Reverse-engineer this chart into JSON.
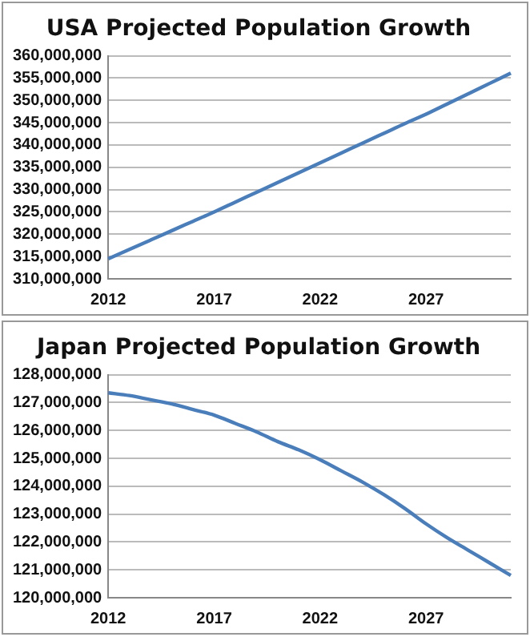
{
  "chart_data": [
    {
      "type": "line",
      "title": "USA Projected Population Growth",
      "categories": [
        "2012",
        null,
        null,
        null,
        null,
        "2017",
        null,
        null,
        null,
        null,
        "2022",
        null,
        null,
        null,
        null,
        "2027",
        null,
        null,
        null,
        null
      ],
      "series": [
        {
          "color": "#4a7ebb",
          "values": [
            314500000,
            316600000,
            318700000,
            320800000,
            322900000,
            325000000,
            327200000,
            329400000,
            331600000,
            333800000,
            336000000,
            338200000,
            340400000,
            342600000,
            344800000,
            346900000,
            349200000,
            351500000,
            353800000,
            356100000
          ]
        }
      ],
      "ylim": [
        310000000,
        360000000
      ],
      "yticks": [
        {
          "value": 310000000,
          "label": "310,000,000"
        },
        {
          "value": 315000000,
          "label": "315,000,000"
        },
        {
          "value": 320000000,
          "label": "320,000,000"
        },
        {
          "value": 325000000,
          "label": "325,000,000"
        },
        {
          "value": 330000000,
          "label": "330,000,000"
        },
        {
          "value": 335000000,
          "label": "335,000,000"
        },
        {
          "value": 340000000,
          "label": "340,000,000"
        },
        {
          "value": 345000000,
          "label": "345,000,000"
        },
        {
          "value": 350000000,
          "label": "350,000,000"
        },
        {
          "value": 355000000,
          "label": "355,000,000"
        },
        {
          "value": 360000000,
          "label": "360,000,000"
        }
      ],
      "grid": "y",
      "legend": false,
      "marker": "none",
      "line_style": "solid"
    },
    {
      "type": "line",
      "title": "Japan Projected Population Growth",
      "categories": [
        "2012",
        null,
        null,
        null,
        null,
        "2017",
        null,
        null,
        null,
        null,
        "2022",
        null,
        null,
        null,
        null,
        "2027",
        null,
        null,
        null,
        null
      ],
      "series": [
        {
          "color": "#4a7ebb",
          "values": [
            127350000,
            127250000,
            127100000,
            126950000,
            126750000,
            126550000,
            126250000,
            125950000,
            125600000,
            125300000,
            124950000,
            124550000,
            124150000,
            123700000,
            123200000,
            122650000,
            122150000,
            121700000,
            121250000,
            120800000
          ]
        }
      ],
      "ylim": [
        120000000,
        128000000
      ],
      "yticks": [
        {
          "value": 120000000,
          "label": "120,000,000"
        },
        {
          "value": 121000000,
          "label": "121,000,000"
        },
        {
          "value": 122000000,
          "label": "122,000,000"
        },
        {
          "value": 123000000,
          "label": "123,000,000"
        },
        {
          "value": 124000000,
          "label": "124,000,000"
        },
        {
          "value": 125000000,
          "label": "125,000,000"
        },
        {
          "value": 126000000,
          "label": "126,000,000"
        },
        {
          "value": 127000000,
          "label": "127,000,000"
        },
        {
          "value": 128000000,
          "label": "128,000,000"
        }
      ],
      "grid": "y",
      "legend": false,
      "marker": "none",
      "line_style": "solid"
    }
  ]
}
